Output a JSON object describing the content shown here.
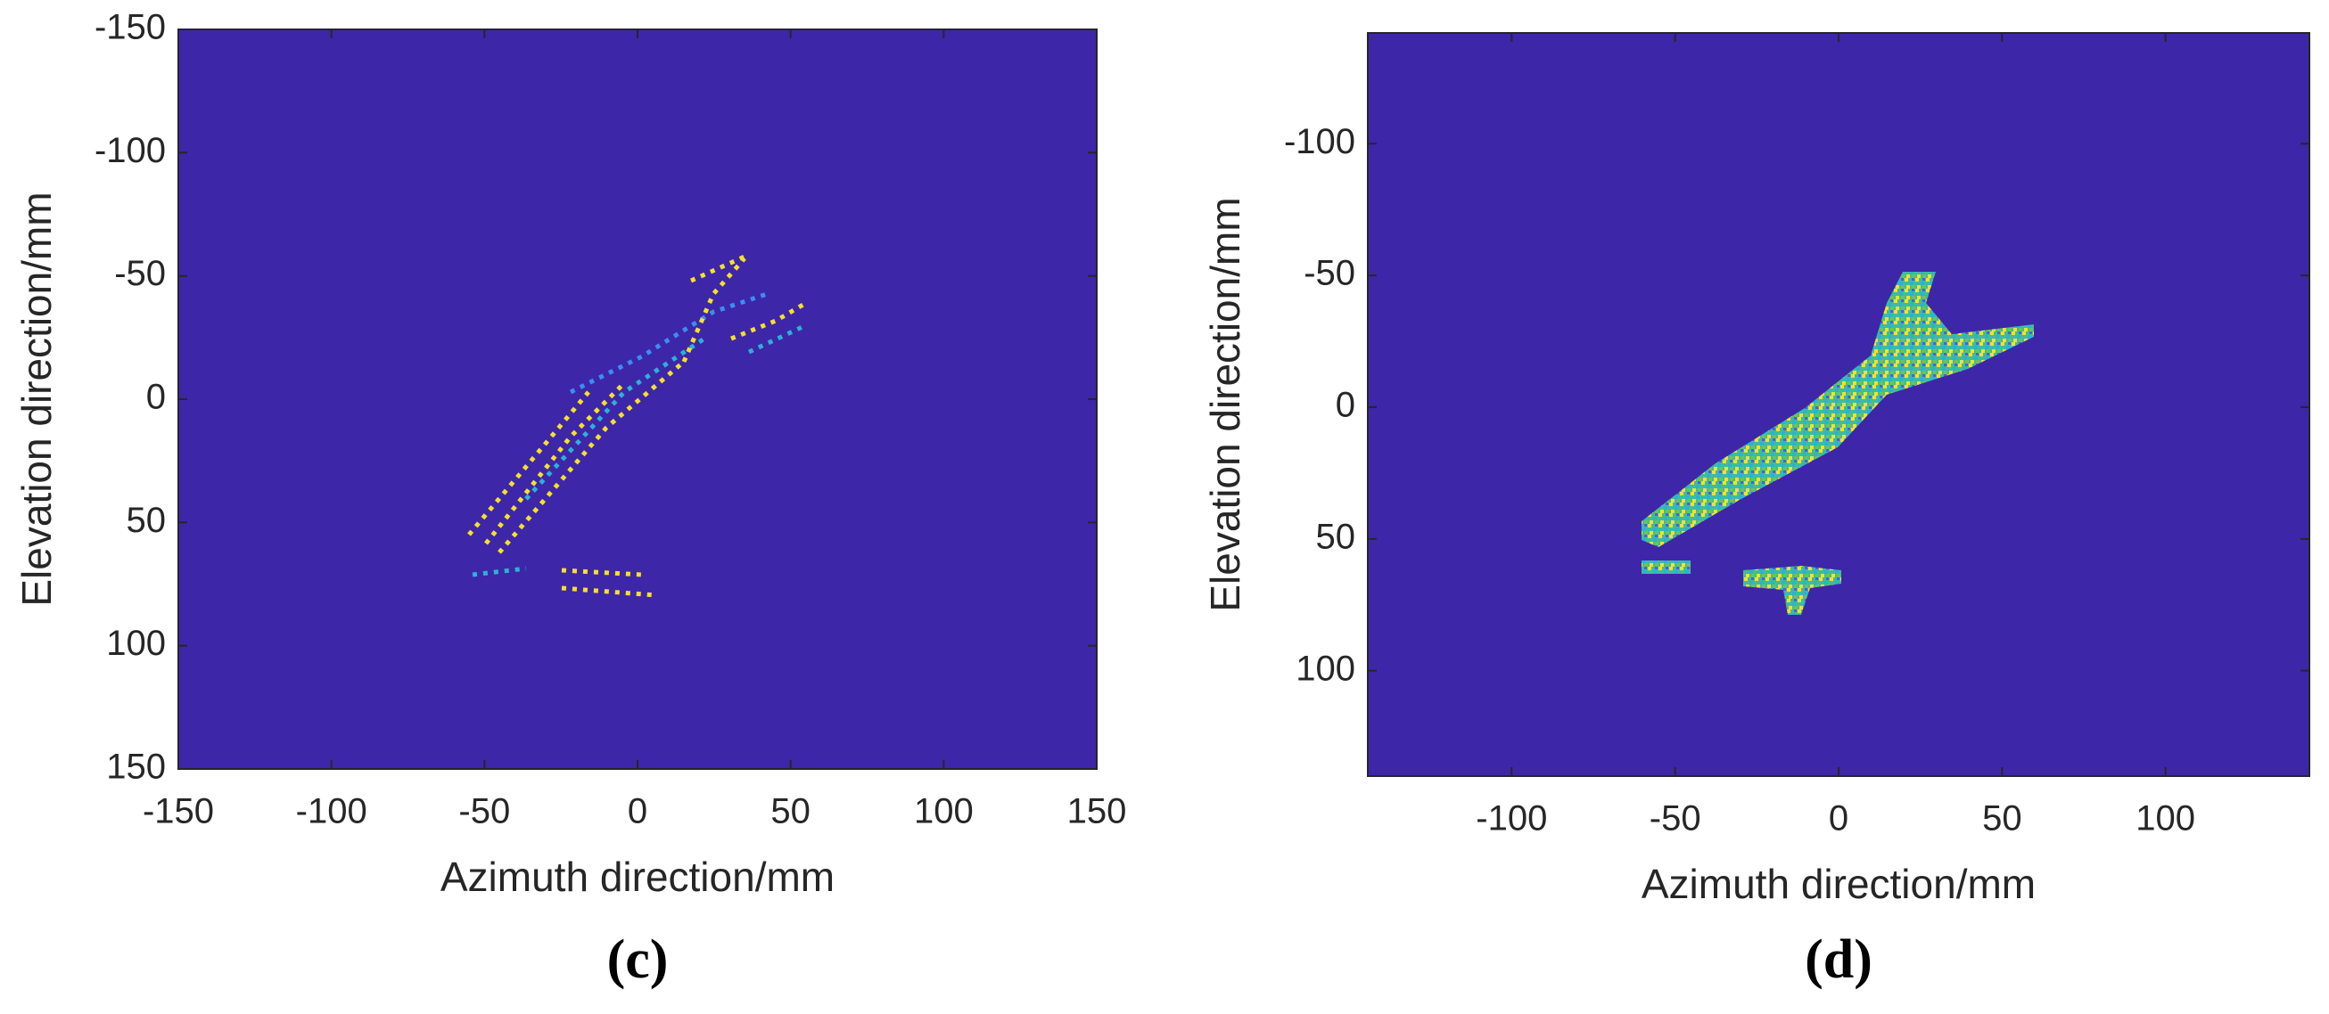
{
  "chart_data": [
    {
      "type": "image",
      "panel_label": "(c)",
      "xlabel": "Azimuth direction/mm",
      "ylabel": "Elevation direction/mm",
      "xlim": [
        -150,
        150
      ],
      "ylim": [
        -150,
        150
      ],
      "y_reversed": true,
      "xticks": [
        -150,
        -100,
        -50,
        0,
        50,
        100,
        150
      ],
      "yticks": [
        -150,
        -100,
        -50,
        0,
        50,
        100,
        150
      ],
      "background_color": "#3e26a8"
    },
    {
      "type": "image",
      "panel_label": "(d)",
      "xlabel": "Azimuth direction/mm",
      "ylabel": "Elevation direction/mm",
      "xlim": [
        -144,
        144
      ],
      "ylim": [
        -142,
        140
      ],
      "y_reversed": true,
      "xticks": [
        -100,
        -50,
        0,
        50,
        100
      ],
      "yticks": [
        -100,
        -50,
        0,
        50,
        100
      ],
      "background_color": "#3e26a8"
    }
  ]
}
